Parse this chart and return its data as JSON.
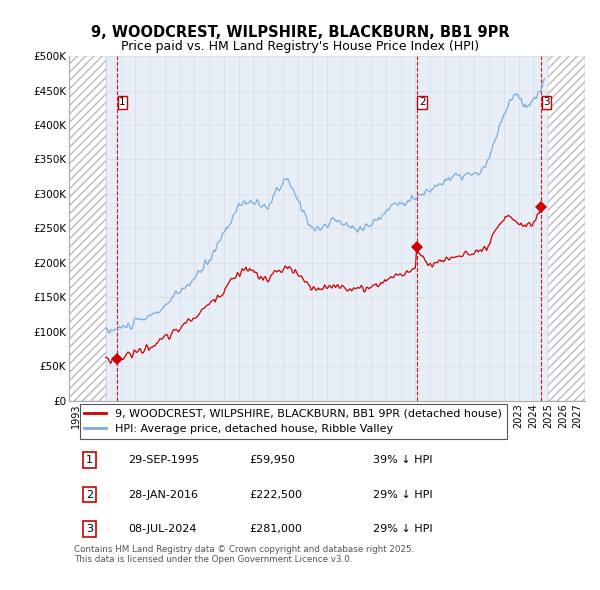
{
  "title": "9, WOODCREST, WILPSHIRE, BLACKBURN, BB1 9PR",
  "subtitle": "Price paid vs. HM Land Registry's House Price Index (HPI)",
  "ylim": [
    0,
    500000
  ],
  "yticks": [
    0,
    50000,
    100000,
    150000,
    200000,
    250000,
    300000,
    350000,
    400000,
    450000,
    500000
  ],
  "ytick_labels": [
    "£0",
    "£50K",
    "£100K",
    "£150K",
    "£200K",
    "£250K",
    "£300K",
    "£350K",
    "£400K",
    "£450K",
    "£500K"
  ],
  "xlim_start": 1992.5,
  "xlim_end": 2027.5,
  "hatch_left_end": 1995.0,
  "hatch_right_start": 2025.0,
  "sale_dates": [
    1995.747,
    2016.08,
    2024.51
  ],
  "sale_prices": [
    59950,
    222500,
    281000
  ],
  "sale_labels": [
    "1",
    "2",
    "3"
  ],
  "sale_date_strs": [
    "29-SEP-1995",
    "28-JAN-2016",
    "08-JUL-2024"
  ],
  "sale_price_strs": [
    "£59,950",
    "£222,500",
    "£281,000"
  ],
  "sale_hpi_strs": [
    "39% ↓ HPI",
    "29% ↓ HPI",
    "29% ↓ HPI"
  ],
  "legend_property": "9, WOODCREST, WILPSHIRE, BLACKBURN, BB1 9PR (detached house)",
  "legend_hpi": "HPI: Average price, detached house, Ribble Valley",
  "property_color": "#cc0000",
  "hpi_color": "#7aaddb",
  "marker_color": "#cc0000",
  "vline_color": "#cc0000",
  "hatch_color": "#bbbbbb",
  "grid_color": "#d4dce8",
  "chart_bg": "#e8eef6",
  "background_color": "#ffffff",
  "title_fontsize": 10.5,
  "subtitle_fontsize": 9,
  "tick_fontsize": 7.5,
  "legend_fontsize": 8,
  "table_fontsize": 8,
  "copyright_text": "Contains HM Land Registry data © Crown copyright and database right 2025.\nThis data is licensed under the Open Government Licence v3.0."
}
